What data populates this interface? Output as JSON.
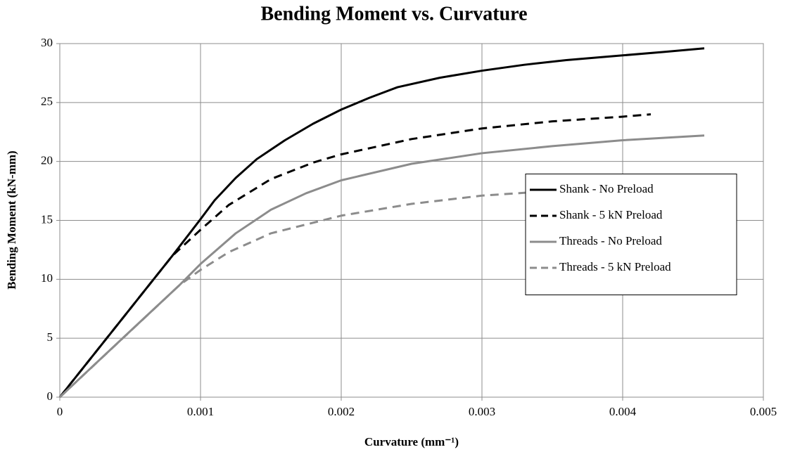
{
  "chart_data": {
    "type": "line",
    "title": "Bending Moment vs. Curvature",
    "xlabel": "Curvature (mm⁻¹)",
    "ylabel": "Bending Moment (kN-mm)",
    "xlim": [
      0,
      0.005
    ],
    "xticks": [
      0,
      0.001,
      0.002,
      0.003,
      0.004,
      0.005
    ],
    "ylim": [
      0,
      30
    ],
    "yticks": [
      0,
      5,
      10,
      15,
      20,
      25,
      30
    ],
    "grid": true,
    "legend": "center right",
    "series": [
      {
        "name": "Shank - No Preload",
        "color": "#000000",
        "dashed": false,
        "x": [
          0,
          0.0002,
          0.0004,
          0.0006,
          0.0008,
          0.001,
          0.0011,
          0.00125,
          0.0014,
          0.0016,
          0.0018,
          0.002,
          0.0022,
          0.0024,
          0.0027,
          0.003,
          0.0033,
          0.0036,
          0.004,
          0.0043,
          0.00458
        ],
        "values": [
          0,
          3,
          6,
          9,
          12,
          15.1,
          16.7,
          18.6,
          20.2,
          21.8,
          23.2,
          24.4,
          25.4,
          26.3,
          27.1,
          27.7,
          28.2,
          28.6,
          29.0,
          29.3,
          29.6
        ]
      },
      {
        "name": "Shank - 5 kN Preload",
        "color": "#000000",
        "dashed": true,
        "x": [
          0,
          0.0008,
          0.001,
          0.0012,
          0.0015,
          0.0018,
          0.002,
          0.0025,
          0.003,
          0.0035,
          0.004,
          0.0042
        ],
        "values": [
          0,
          12,
          14.2,
          16.3,
          18.5,
          19.9,
          20.6,
          21.9,
          22.8,
          23.4,
          23.8,
          24.0
        ]
      },
      {
        "name": "Threads - No Preload",
        "color": "#8c8c8c",
        "dashed": false,
        "x": [
          0,
          0.0005,
          0.00085,
          0.001,
          0.00125,
          0.0015,
          0.00175,
          0.002,
          0.0025,
          0.003,
          0.0035,
          0.004,
          0.00458
        ],
        "values": [
          0,
          5.6,
          9.5,
          11.3,
          13.9,
          15.9,
          17.3,
          18.4,
          19.8,
          20.7,
          21.3,
          21.8,
          22.2
        ]
      },
      {
        "name": "Threads - 5 kN Preload",
        "color": "#8c8c8c",
        "dashed": true,
        "x": [
          0,
          0.00085,
          0.001,
          0.0012,
          0.0015,
          0.002,
          0.0025,
          0.003,
          0.0035,
          0.004,
          0.0042
        ],
        "values": [
          0,
          9.5,
          10.8,
          12.3,
          13.9,
          15.4,
          16.4,
          17.1,
          17.5,
          17.8,
          18.0
        ]
      }
    ]
  }
}
